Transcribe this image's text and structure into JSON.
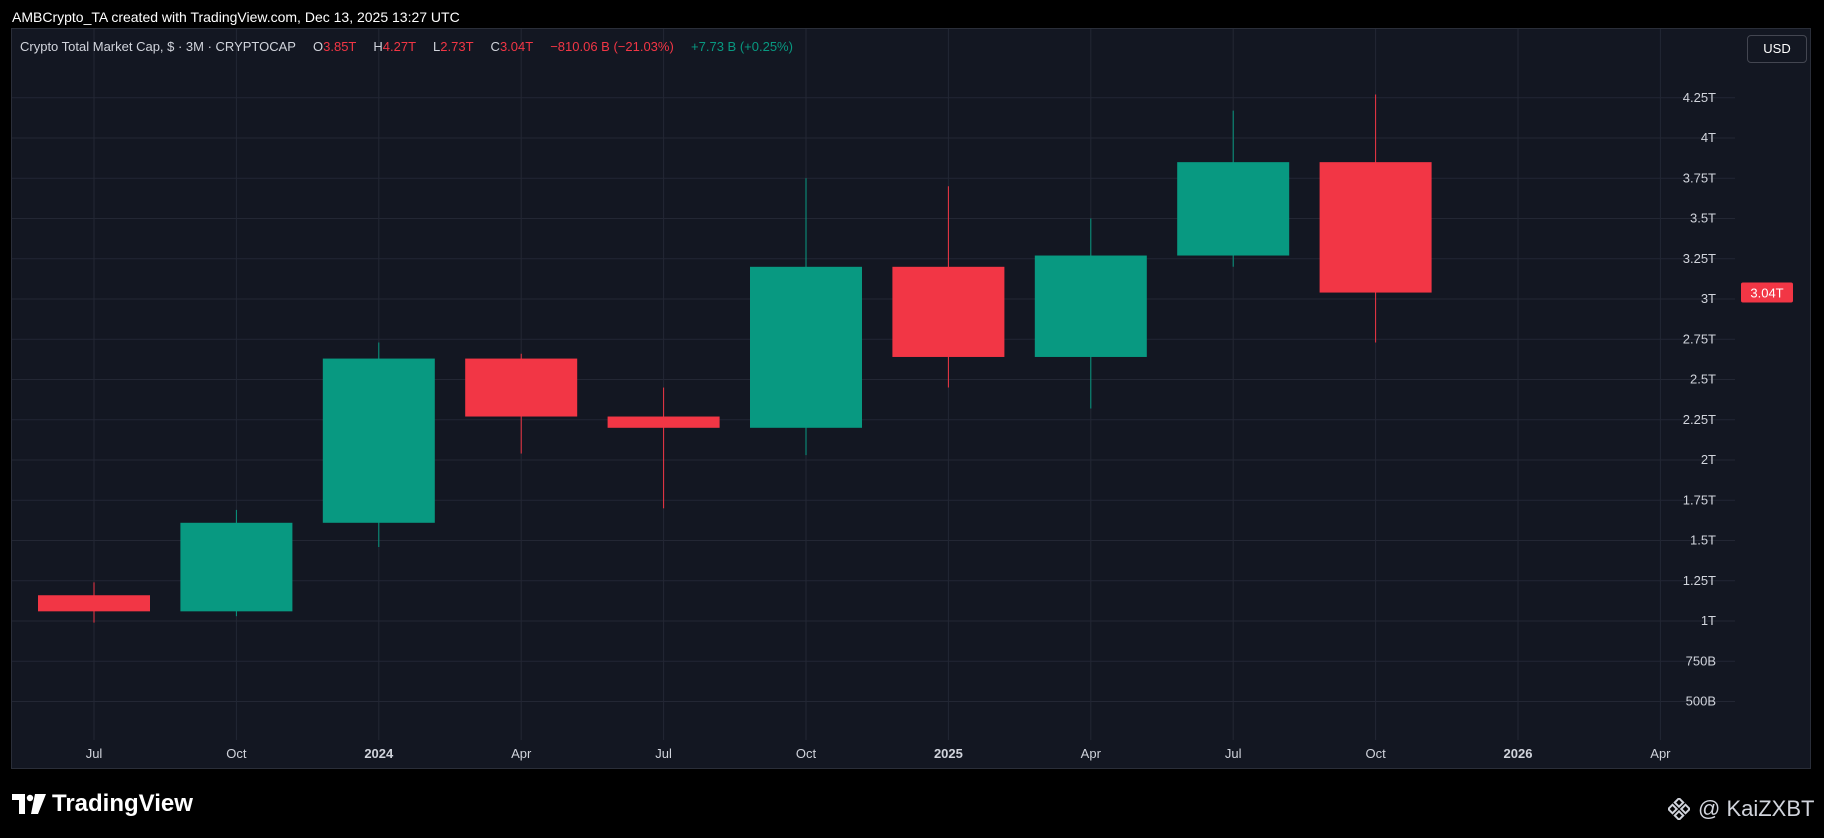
{
  "header": {
    "attribution": "AMBCrypto_TA created with TradingView.com, Dec 13, 2025 13:27 UTC"
  },
  "legend": {
    "title": "Crypto Total Market Cap, $ · 3M · CRYPTOCAP",
    "o_label": "O",
    "o_value": "3.85T",
    "h_label": "H",
    "h_value": "4.27T",
    "l_label": "L",
    "l_value": "2.73T",
    "c_label": "C",
    "c_value": "3.04T",
    "change": "−810.06 B (−21.03%)",
    "volume": "+7.73 B (+0.25%)"
  },
  "toolbar": {
    "currency": "USD"
  },
  "branding": {
    "logo_text": "TradingView",
    "watermark": "@ KaiZXBT"
  },
  "colors": {
    "up": "#089981",
    "down": "#f23645",
    "background": "#131722",
    "grid": "#232734",
    "axis_text": "#d1d4dc"
  },
  "chart_data": {
    "type": "candlestick",
    "interval": "3M",
    "y_unit": "USD",
    "ylim": [
      300000000000,
      4500000000000
    ],
    "y_ticks": [
      {
        "value": 500000000000,
        "label": "500B"
      },
      {
        "value": 750000000000,
        "label": "750B"
      },
      {
        "value": 1000000000000,
        "label": "1T"
      },
      {
        "value": 1250000000000,
        "label": "1.25T"
      },
      {
        "value": 1500000000000,
        "label": "1.5T"
      },
      {
        "value": 1750000000000,
        "label": "1.75T"
      },
      {
        "value": 2000000000000,
        "label": "2T"
      },
      {
        "value": 2250000000000,
        "label": "2.25T"
      },
      {
        "value": 2500000000000,
        "label": "2.5T"
      },
      {
        "value": 2750000000000,
        "label": "2.75T"
      },
      {
        "value": 3000000000000,
        "label": "3T"
      },
      {
        "value": 3250000000000,
        "label": "3.25T"
      },
      {
        "value": 3500000000000,
        "label": "3.5T"
      },
      {
        "value": 3750000000000,
        "label": "3.75T"
      },
      {
        "value": 4000000000000,
        "label": "4T"
      },
      {
        "value": 4250000000000,
        "label": "4.25T"
      }
    ],
    "x_ticks": [
      {
        "date": "2023-07",
        "label": "Jul",
        "bold": false
      },
      {
        "date": "2023-10",
        "label": "Oct",
        "bold": false
      },
      {
        "date": "2024-01",
        "label": "2024",
        "bold": true
      },
      {
        "date": "2024-04",
        "label": "Apr",
        "bold": false
      },
      {
        "date": "2024-07",
        "label": "Jul",
        "bold": false
      },
      {
        "date": "2024-10",
        "label": "Oct",
        "bold": false
      },
      {
        "date": "2025-01",
        "label": "2025",
        "bold": true
      },
      {
        "date": "2025-04",
        "label": "Apr",
        "bold": false
      },
      {
        "date": "2025-07",
        "label": "Jul",
        "bold": false
      },
      {
        "date": "2025-10",
        "label": "Oct",
        "bold": false
      },
      {
        "date": "2026-01",
        "label": "2026",
        "bold": true
      },
      {
        "date": "2026-04",
        "label": "Apr",
        "bold": false
      }
    ],
    "candles": [
      {
        "date": "2023-07",
        "open": 1160000000000,
        "high": 1240000000000,
        "low": 990000000000,
        "close": 1060000000000
      },
      {
        "date": "2023-10",
        "open": 1060000000000,
        "high": 1690000000000,
        "low": 1030000000000,
        "close": 1610000000000
      },
      {
        "date": "2024-01",
        "open": 1610000000000,
        "high": 2730000000000,
        "low": 1460000000000,
        "close": 2630000000000
      },
      {
        "date": "2024-04",
        "open": 2630000000000,
        "high": 2660000000000,
        "low": 2040000000000,
        "close": 2270000000000
      },
      {
        "date": "2024-07",
        "open": 2270000000000,
        "high": 2450000000000,
        "low": 1700000000000,
        "close": 2200000000000
      },
      {
        "date": "2024-10",
        "open": 2200000000000,
        "high": 3750000000000,
        "low": 2030000000000,
        "close": 3200000000000
      },
      {
        "date": "2025-01",
        "open": 3200000000000,
        "high": 3700000000000,
        "low": 2450000000000,
        "close": 2640000000000
      },
      {
        "date": "2025-04",
        "open": 2640000000000,
        "high": 3500000000000,
        "low": 2320000000000,
        "close": 3270000000000
      },
      {
        "date": "2025-07",
        "open": 3270000000000,
        "high": 4170000000000,
        "low": 3200000000000,
        "close": 3850000000000
      },
      {
        "date": "2025-10",
        "open": 3850000000000,
        "high": 4270000000000,
        "low": 2730000000000,
        "close": 3040000000000
      }
    ],
    "last_price": {
      "value": 3040000000000,
      "label": "3.04T"
    },
    "grid": true
  }
}
